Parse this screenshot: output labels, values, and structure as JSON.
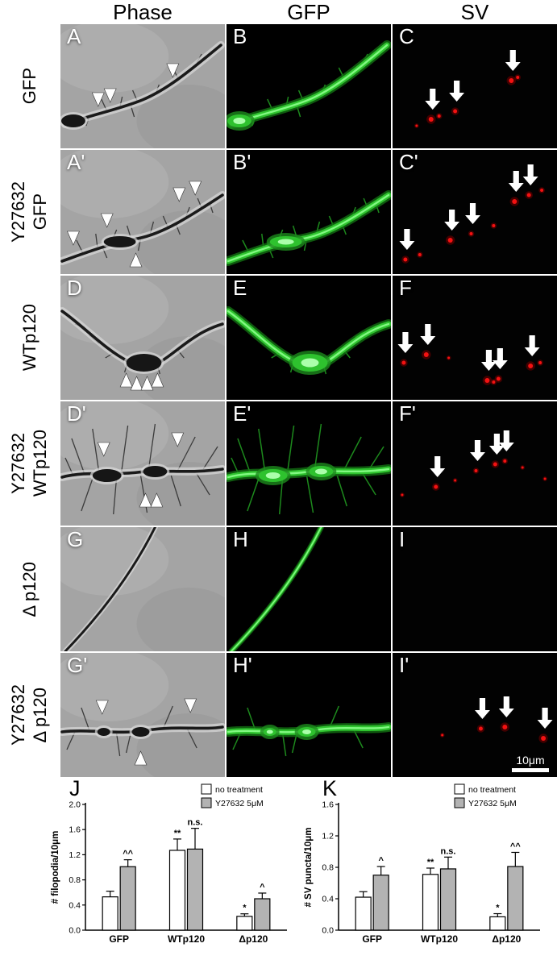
{
  "figure": {
    "column_headers": [
      "Phase",
      "GFP",
      "SV"
    ],
    "rows": [
      {
        "label_lines": [
          "GFP"
        ],
        "panels": [
          "A",
          "B",
          "C"
        ]
      },
      {
        "label_lines": [
          "Y27632",
          "GFP"
        ],
        "panels": [
          "A'",
          "B'",
          "C'"
        ]
      },
      {
        "label_lines": [
          "WTp120"
        ],
        "panels": [
          "D",
          "E",
          "F"
        ]
      },
      {
        "label_lines": [
          "Y27632",
          "WTp120"
        ],
        "panels": [
          "D'",
          "E'",
          "F'"
        ]
      },
      {
        "label_lines": [
          "Δ p120"
        ],
        "panels": [
          "G",
          "H",
          "I"
        ]
      },
      {
        "label_lines": [
          "Y27632",
          "Δ p120"
        ],
        "panels": [
          "G'",
          "H'",
          "I'"
        ]
      }
    ],
    "scale_bar_label": "10μm"
  },
  "chart_data": [
    {
      "type": "bar",
      "panel_label": "J",
      "ylabel": "# filopodia/10μm",
      "ylim": [
        0,
        2.0
      ],
      "yticks": [
        0.0,
        0.4,
        0.8,
        1.2,
        1.6,
        2.0
      ],
      "grid": false,
      "legend_position": "top-right",
      "categories": [
        "GFP",
        "WTp120",
        "Δp120"
      ],
      "series": [
        {
          "name": "no treatment",
          "fill": "#ffffff",
          "values": [
            0.53,
            1.27,
            0.22
          ],
          "errors": [
            0.09,
            0.18,
            0.04
          ],
          "annotations": [
            "",
            "**",
            "*"
          ]
        },
        {
          "name": "Y27632 5μM",
          "fill": "#b3b3b3",
          "values": [
            1.01,
            1.29,
            0.5
          ],
          "errors": [
            0.11,
            0.33,
            0.09
          ],
          "annotations": [
            "^^",
            "n.s.",
            "^"
          ]
        }
      ]
    },
    {
      "type": "bar",
      "panel_label": "K",
      "ylabel": "# SV puncta/10μm",
      "ylim": [
        0,
        1.6
      ],
      "yticks": [
        0.0,
        0.4,
        0.8,
        1.2,
        1.6
      ],
      "grid": false,
      "legend_position": "top-right",
      "categories": [
        "GFP",
        "WTp120",
        "Δp120"
      ],
      "series": [
        {
          "name": "no treatment",
          "fill": "#ffffff",
          "values": [
            0.42,
            0.71,
            0.17
          ],
          "errors": [
            0.07,
            0.08,
            0.04
          ],
          "annotations": [
            "",
            "**",
            "*"
          ]
        },
        {
          "name": "Y27632 5μM",
          "fill": "#b3b3b3",
          "values": [
            0.7,
            0.78,
            0.81
          ],
          "errors": [
            0.11,
            0.15,
            0.18
          ],
          "annotations": [
            "^",
            "n.s.",
            "^^"
          ]
        }
      ]
    }
  ]
}
